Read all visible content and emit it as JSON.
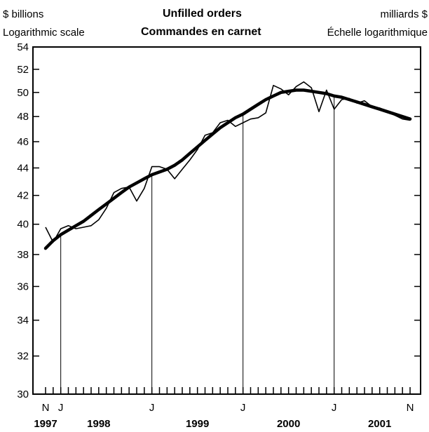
{
  "header": {
    "left_unit": "$ billions",
    "left_scale": "Logarithmic scale",
    "title_en": "Unfilled orders",
    "title_fr": "Commandes en carnet",
    "right_unit": "milliards $",
    "right_scale": "Échelle logarithmique"
  },
  "chart_data": {
    "type": "line",
    "title": "Unfilled orders / Commandes en carnet",
    "ylabel": "$ billions",
    "yscale": "log",
    "ylim": [
      30,
      54
    ],
    "yticks": [
      30,
      32,
      34,
      36,
      38,
      40,
      42,
      44,
      46,
      48,
      50,
      52,
      54
    ],
    "x_start": "1997-11",
    "x_end": "2001-11",
    "month_labels": [
      {
        "month": "1997-11",
        "label": "N"
      },
      {
        "month": "1998-01",
        "label": "J"
      },
      {
        "month": "1999-01",
        "label": "J"
      },
      {
        "month": "2000-01",
        "label": "J"
      },
      {
        "month": "2001-01",
        "label": "J"
      },
      {
        "month": "2001-11",
        "label": "N"
      }
    ],
    "year_labels": [
      {
        "month": "1997-11",
        "label": "1997"
      },
      {
        "month": "1998-06",
        "label": "1998"
      },
      {
        "month": "1999-07",
        "label": "1999"
      },
      {
        "month": "2000-07",
        "label": "2000"
      },
      {
        "month": "2001-07",
        "label": "2001"
      }
    ],
    "vertical_lines": [
      "1998-01",
      "1999-01",
      "2000-01",
      "2001-01"
    ],
    "grid": false,
    "series": [
      {
        "name": "",
        "style": "thin",
        "x": [
          "1997-11",
          "1997-12",
          "1998-01",
          "1998-02",
          "1998-03",
          "1998-04",
          "1998-05",
          "1998-06",
          "1998-07",
          "1998-08",
          "1998-09",
          "1998-10",
          "1998-11",
          "1998-12",
          "1999-01",
          "1999-02",
          "1999-03",
          "1999-04",
          "1999-05",
          "1999-06",
          "1999-07",
          "1999-08",
          "1999-09",
          "1999-10",
          "1999-11",
          "1999-12",
          "2000-01",
          "2000-02",
          "2000-03",
          "2000-04",
          "2000-05",
          "2000-06",
          "2000-07",
          "2000-08",
          "2000-09",
          "2000-10",
          "2000-11",
          "2000-12",
          "2001-01",
          "2001-02",
          "2001-03",
          "2001-04",
          "2001-05",
          "2001-06",
          "2001-07",
          "2001-08",
          "2001-09",
          "2001-10",
          "2001-11"
        ],
        "values": [
          39.8,
          38.8,
          39.7,
          39.9,
          39.7,
          39.8,
          39.9,
          40.3,
          41.1,
          42.2,
          42.5,
          42.6,
          41.6,
          42.5,
          44.1,
          44.1,
          43.9,
          43.2,
          43.9,
          44.6,
          45.4,
          46.5,
          46.7,
          47.5,
          47.7,
          47.2,
          47.5,
          47.8,
          47.9,
          48.3,
          50.6,
          50.3,
          49.8,
          50.5,
          50.9,
          50.4,
          48.4,
          50.2,
          48.6,
          49.4,
          49.5,
          49.1,
          49.3,
          48.8,
          48.7,
          48.4,
          48.1,
          47.8,
          47.7
        ]
      },
      {
        "name": "",
        "style": "thick",
        "x": [
          "1997-11",
          "1997-12",
          "1998-01",
          "1998-02",
          "1998-03",
          "1998-04",
          "1998-05",
          "1998-06",
          "1998-07",
          "1998-08",
          "1998-09",
          "1998-10",
          "1998-11",
          "1998-12",
          "1999-01",
          "1999-02",
          "1999-03",
          "1999-04",
          "1999-05",
          "1999-06",
          "1999-07",
          "1999-08",
          "1999-09",
          "1999-10",
          "1999-11",
          "1999-12",
          "2000-01",
          "2000-02",
          "2000-03",
          "2000-04",
          "2000-05",
          "2000-06",
          "2000-07",
          "2000-08",
          "2000-09",
          "2000-10",
          "2000-11",
          "2000-12",
          "2001-01",
          "2001-02",
          "2001-03",
          "2001-04",
          "2001-05",
          "2001-06",
          "2001-07",
          "2001-08",
          "2001-09",
          "2001-10",
          "2001-11"
        ],
        "values": [
          38.4,
          38.9,
          39.3,
          39.6,
          39.9,
          40.2,
          40.6,
          41.0,
          41.4,
          41.8,
          42.2,
          42.6,
          42.9,
          43.2,
          43.5,
          43.7,
          43.9,
          44.2,
          44.6,
          45.1,
          45.6,
          46.1,
          46.6,
          47.1,
          47.5,
          47.9,
          48.2,
          48.6,
          49.0,
          49.4,
          49.7,
          50.0,
          50.1,
          50.2,
          50.2,
          50.1,
          50.0,
          49.9,
          49.7,
          49.6,
          49.4,
          49.2,
          49.0,
          48.8,
          48.6,
          48.4,
          48.2,
          48.0,
          47.8
        ]
      }
    ]
  }
}
